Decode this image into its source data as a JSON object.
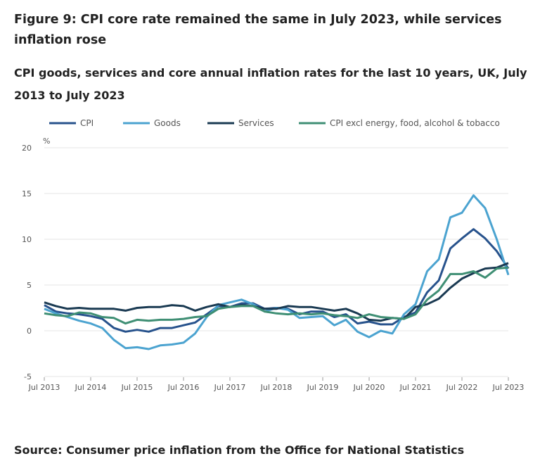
{
  "title": "Figure 9: CPI core rate remained the same in July 2023, while services inflation rose",
  "subtitle": "CPI goods, services and core annual inflation rates for the last 10 years, UK, July 2013 to July 2023",
  "source": "Source: Consumer price inflation from the Office for National Statistics",
  "chart_data": {
    "type": "line",
    "ylabel": "%",
    "ylim": [
      -5,
      20
    ],
    "yticks": [
      "20",
      "15",
      "10",
      "5",
      "0",
      "-5"
    ],
    "xticks": [
      "Jul 2013",
      "Jul 2014",
      "Jul 2015",
      "Jul 2016",
      "Jul 2017",
      "Jul 2018",
      "Jul 2019",
      "Jul 2020",
      "Jul 2021",
      "Jul 2022",
      "Jul 2023"
    ],
    "grid": true,
    "legend_position": "top",
    "x": [
      "Jul 2013",
      "Oct 2013",
      "Jan 2014",
      "Apr 2014",
      "Jul 2014",
      "Oct 2014",
      "Jan 2015",
      "Apr 2015",
      "Jul 2015",
      "Oct 2015",
      "Jan 2016",
      "Apr 2016",
      "Jul 2016",
      "Oct 2016",
      "Jan 2017",
      "Apr 2017",
      "Jul 2017",
      "Oct 2017",
      "Jan 2018",
      "Apr 2018",
      "Jul 2018",
      "Oct 2018",
      "Jan 2019",
      "Apr 2019",
      "Jul 2019",
      "Oct 2019",
      "Jan 2020",
      "Apr 2020",
      "Jul 2020",
      "Oct 2020",
      "Jan 2021",
      "Apr 2021",
      "Jul 2021",
      "Oct 2021",
      "Jan 2022",
      "Apr 2022",
      "Jul 2022",
      "Oct 2022",
      "Jan 2023",
      "Apr 2023",
      "Jul 2023"
    ],
    "series": [
      {
        "name": "CPI",
        "color": "#27528c",
        "values": [
          2.8,
          2.1,
          1.9,
          1.8,
          1.6,
          1.3,
          0.3,
          -0.1,
          0.1,
          -0.1,
          0.3,
          0.3,
          0.6,
          0.9,
          1.8,
          2.7,
          2.6,
          3.0,
          3.0,
          2.4,
          2.5,
          2.4,
          1.8,
          2.1,
          2.1,
          1.5,
          1.8,
          0.8,
          1.0,
          0.7,
          0.7,
          1.5,
          2.0,
          4.2,
          5.5,
          9.0,
          10.1,
          11.1,
          10.1,
          8.7,
          6.8
        ]
      },
      {
        "name": "Goods",
        "color": "#4ba3d0",
        "values": [
          2.4,
          1.9,
          1.5,
          1.1,
          0.8,
          0.3,
          -1.0,
          -1.9,
          -1.8,
          -2.0,
          -1.6,
          -1.5,
          -1.3,
          -0.3,
          1.5,
          2.8,
          3.1,
          3.4,
          2.9,
          2.1,
          2.5,
          2.3,
          1.4,
          1.5,
          1.6,
          0.6,
          1.2,
          -0.1,
          -0.7,
          0.0,
          -0.3,
          1.8,
          2.9,
          6.5,
          7.8,
          12.4,
          12.9,
          14.8,
          13.4,
          10.0,
          6.1
        ]
      },
      {
        "name": "Services",
        "color": "#1a3a52",
        "values": [
          3.1,
          2.7,
          2.4,
          2.5,
          2.4,
          2.4,
          2.4,
          2.2,
          2.5,
          2.6,
          2.6,
          2.8,
          2.7,
          2.2,
          2.6,
          2.9,
          2.6,
          2.8,
          2.7,
          2.4,
          2.4,
          2.7,
          2.6,
          2.6,
          2.4,
          2.2,
          2.4,
          1.9,
          1.2,
          1.1,
          1.4,
          1.3,
          2.6,
          2.9,
          3.5,
          4.7,
          5.7,
          6.3,
          6.8,
          6.9,
          7.4
        ]
      },
      {
        "name": "CPI excl energy, food, alcohol & tobacco",
        "color": "#3f8f74",
        "values": [
          1.9,
          1.7,
          1.6,
          2.0,
          1.9,
          1.5,
          1.4,
          0.8,
          1.2,
          1.1,
          1.2,
          1.2,
          1.3,
          1.5,
          1.6,
          2.4,
          2.6,
          2.7,
          2.7,
          2.1,
          1.9,
          1.8,
          1.9,
          1.8,
          1.9,
          1.7,
          1.6,
          1.4,
          1.8,
          1.5,
          1.4,
          1.3,
          1.8,
          3.4,
          4.4,
          6.2,
          6.2,
          6.5,
          5.8,
          6.8,
          6.9
        ]
      }
    ]
  }
}
